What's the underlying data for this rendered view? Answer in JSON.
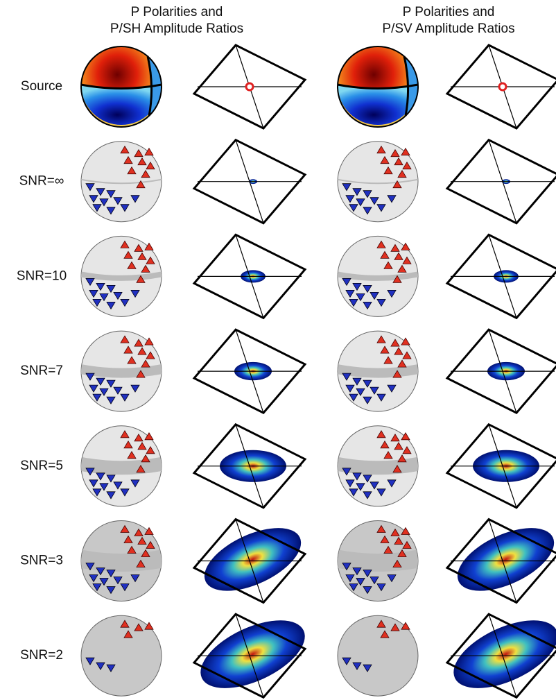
{
  "columns": [
    {
      "title_lines": [
        "P Polarities and",
        "P/SH Amplitude Ratios"
      ]
    },
    {
      "title_lines": [
        "P Polarities and",
        "P/SV Amplitude Ratios"
      ]
    }
  ],
  "rows": [
    {
      "label": "Source"
    },
    {
      "label": "SNR=∞"
    },
    {
      "label": "SNR=10"
    },
    {
      "label": "SNR=7"
    },
    {
      "label": "SNR=5"
    },
    {
      "label": "SNR=3"
    },
    {
      "label": "SNR=2"
    }
  ]
}
